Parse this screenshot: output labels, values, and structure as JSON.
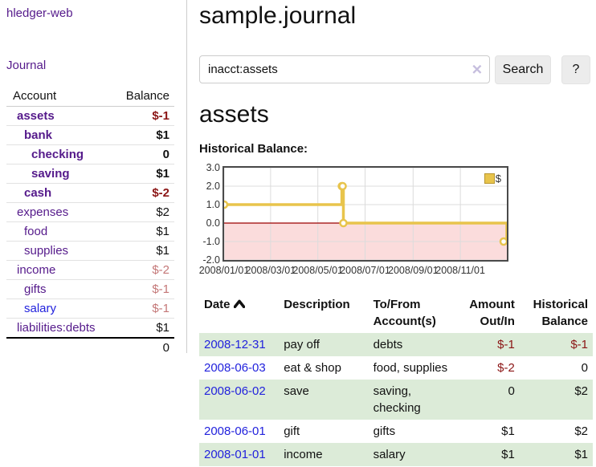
{
  "app": {
    "brand": "hledger-web"
  },
  "nav": {
    "journal": "Journal"
  },
  "sidebar": {
    "col_account": "Account",
    "col_balance": "Balance",
    "accounts": [
      {
        "name": "assets",
        "depth": 1,
        "bold": true,
        "balance": "$-1",
        "neg": "strong"
      },
      {
        "name": "bank",
        "depth": 2,
        "bold": true,
        "balance": "$1",
        "neg": "none"
      },
      {
        "name": "checking",
        "depth": 3,
        "bold": true,
        "balance": "0",
        "neg": "none"
      },
      {
        "name": "saving",
        "depth": 3,
        "bold": true,
        "balance": "$1",
        "neg": "none"
      },
      {
        "name": "cash",
        "depth": 2,
        "bold": true,
        "balance": "$-2",
        "neg": "strong"
      },
      {
        "name": "expenses",
        "depth": 1,
        "bold": false,
        "balance": "$2",
        "neg": "none"
      },
      {
        "name": "food",
        "depth": 2,
        "bold": false,
        "balance": "$1",
        "neg": "none"
      },
      {
        "name": "supplies",
        "depth": 2,
        "bold": false,
        "balance": "$1",
        "neg": "none"
      },
      {
        "name": "income",
        "depth": 1,
        "bold": false,
        "balance": "$-2",
        "neg": "soft"
      },
      {
        "name": "gifts",
        "depth": 2,
        "bold": false,
        "balance": "$-1",
        "neg": "soft"
      },
      {
        "name": "salary",
        "depth": 2,
        "bold": false,
        "balance": "$-1",
        "neg": "soft",
        "link_state": "unvisited"
      },
      {
        "name": "liabilities:debts",
        "depth": 1,
        "bold": false,
        "balance": "$1",
        "neg": "none"
      }
    ],
    "total": "0"
  },
  "header": {
    "title": "sample.journal"
  },
  "search": {
    "value": "inacct:assets",
    "clear_icon": "✕",
    "button_label": "Search",
    "help_label": "?"
  },
  "account_page": {
    "title": "assets"
  },
  "chart_data": {
    "type": "line",
    "step": true,
    "title": "Historical Balance:",
    "series": [
      {
        "name": "$",
        "color": "#e8c44c",
        "points": [
          {
            "date": "2008-01-01",
            "value": 1
          },
          {
            "date": "2008-06-01",
            "value": 2
          },
          {
            "date": "2008-06-02",
            "value": 2
          },
          {
            "date": "2008-06-03",
            "value": 0
          },
          {
            "date": "2008-12-31",
            "value": -1
          }
        ]
      }
    ],
    "ylim": [
      -2,
      3
    ],
    "yticks": [
      3.0,
      2.0,
      1.0,
      0.0,
      -1.0,
      -2.0
    ],
    "xticks": [
      "2008/01/01",
      "2008/03/01",
      "2008/05/01",
      "2008/07/01",
      "2008/09/01",
      "2008/11/01"
    ],
    "grid": true,
    "negative_region_color": "#fbdcdc",
    "zero_line_color": "#9b0000",
    "gridline_color": "#dcdcdc",
    "legend": {
      "label": "$",
      "position": "top-right"
    }
  },
  "register": {
    "headers": {
      "date": "Date",
      "description": "Description",
      "accounts": "To/From Account(s)",
      "amount": "Amount Out/In",
      "balance": "Historical Balance"
    },
    "rows": [
      {
        "date": "2008-12-31",
        "description": "pay off",
        "accounts": "debts",
        "amount": "$-1",
        "balance": "$-1",
        "shade": true
      },
      {
        "date": "2008-06-03",
        "description": "eat & shop",
        "accounts": "food, supplies",
        "amount": "$-2",
        "balance": "0",
        "shade": false
      },
      {
        "date": "2008-06-02",
        "description": "save",
        "accounts": "saving, checking",
        "amount": "0",
        "balance": "$2",
        "shade": true
      },
      {
        "date": "2008-06-01",
        "description": "gift",
        "accounts": "gifts",
        "amount": "$1",
        "balance": "$2",
        "shade": false
      },
      {
        "date": "2008-01-01",
        "description": "income",
        "accounts": "salary",
        "amount": "$1",
        "balance": "$1",
        "shade": true
      }
    ]
  }
}
